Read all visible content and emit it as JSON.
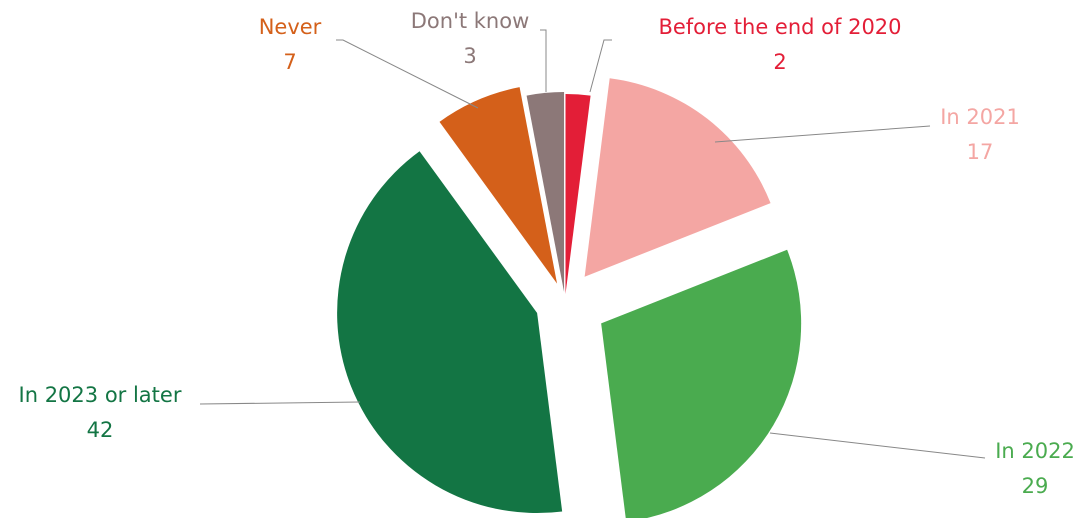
{
  "chart_data": {
    "type": "pie",
    "categories": [
      "Before the end of 2020",
      "In 2021",
      "In 2022",
      "In 2023 or later",
      "Never",
      "Don't know"
    ],
    "values": [
      2,
      17,
      29,
      42,
      7,
      3
    ],
    "colors": [
      "#e31e37",
      "#f4a6a3",
      "#4aab4f",
      "#137544",
      "#d4601a",
      "#8c7878"
    ]
  }
}
